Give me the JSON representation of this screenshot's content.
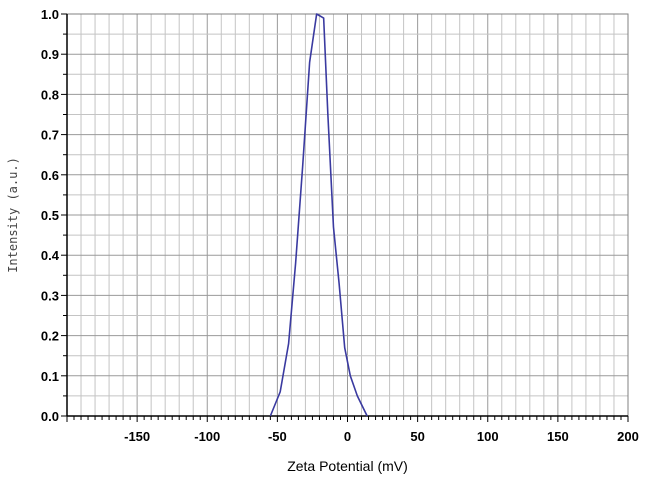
{
  "chart_data": {
    "type": "line",
    "xlabel": "Zeta Potential (mV)",
    "ylabel": "Intensity (a.u.)",
    "xlim": [
      -200,
      200
    ],
    "ylim": [
      0,
      1
    ],
    "x_ticks": [
      -150,
      -100,
      -50,
      0,
      50,
      100,
      150,
      200
    ],
    "x_tick_labels": [
      "-150",
      "-100",
      "-50",
      "0",
      "50",
      "100",
      "150",
      "200"
    ],
    "y_ticks": [
      0.0,
      0.1,
      0.2,
      0.3,
      0.4,
      0.5,
      0.6,
      0.7,
      0.8,
      0.9,
      1.0
    ],
    "y_tick_labels": [
      "0.0",
      "0.1",
      "0.2",
      "0.3",
      "0.4",
      "0.5",
      "0.6",
      "0.7",
      "0.8",
      "0.9",
      "1.0"
    ],
    "grid": true,
    "series_color": "#3a3aa0",
    "series": [
      {
        "x": [
          -55,
          -48,
          -42,
          -37,
          -32,
          -27,
          -22,
          -17,
          -14,
          -10,
          -6,
          -2,
          2,
          7,
          14
        ],
        "y": [
          0.0,
          0.06,
          0.18,
          0.38,
          0.62,
          0.88,
          1.0,
          0.99,
          0.75,
          0.47,
          0.33,
          0.17,
          0.1,
          0.05,
          0.0
        ]
      }
    ]
  }
}
